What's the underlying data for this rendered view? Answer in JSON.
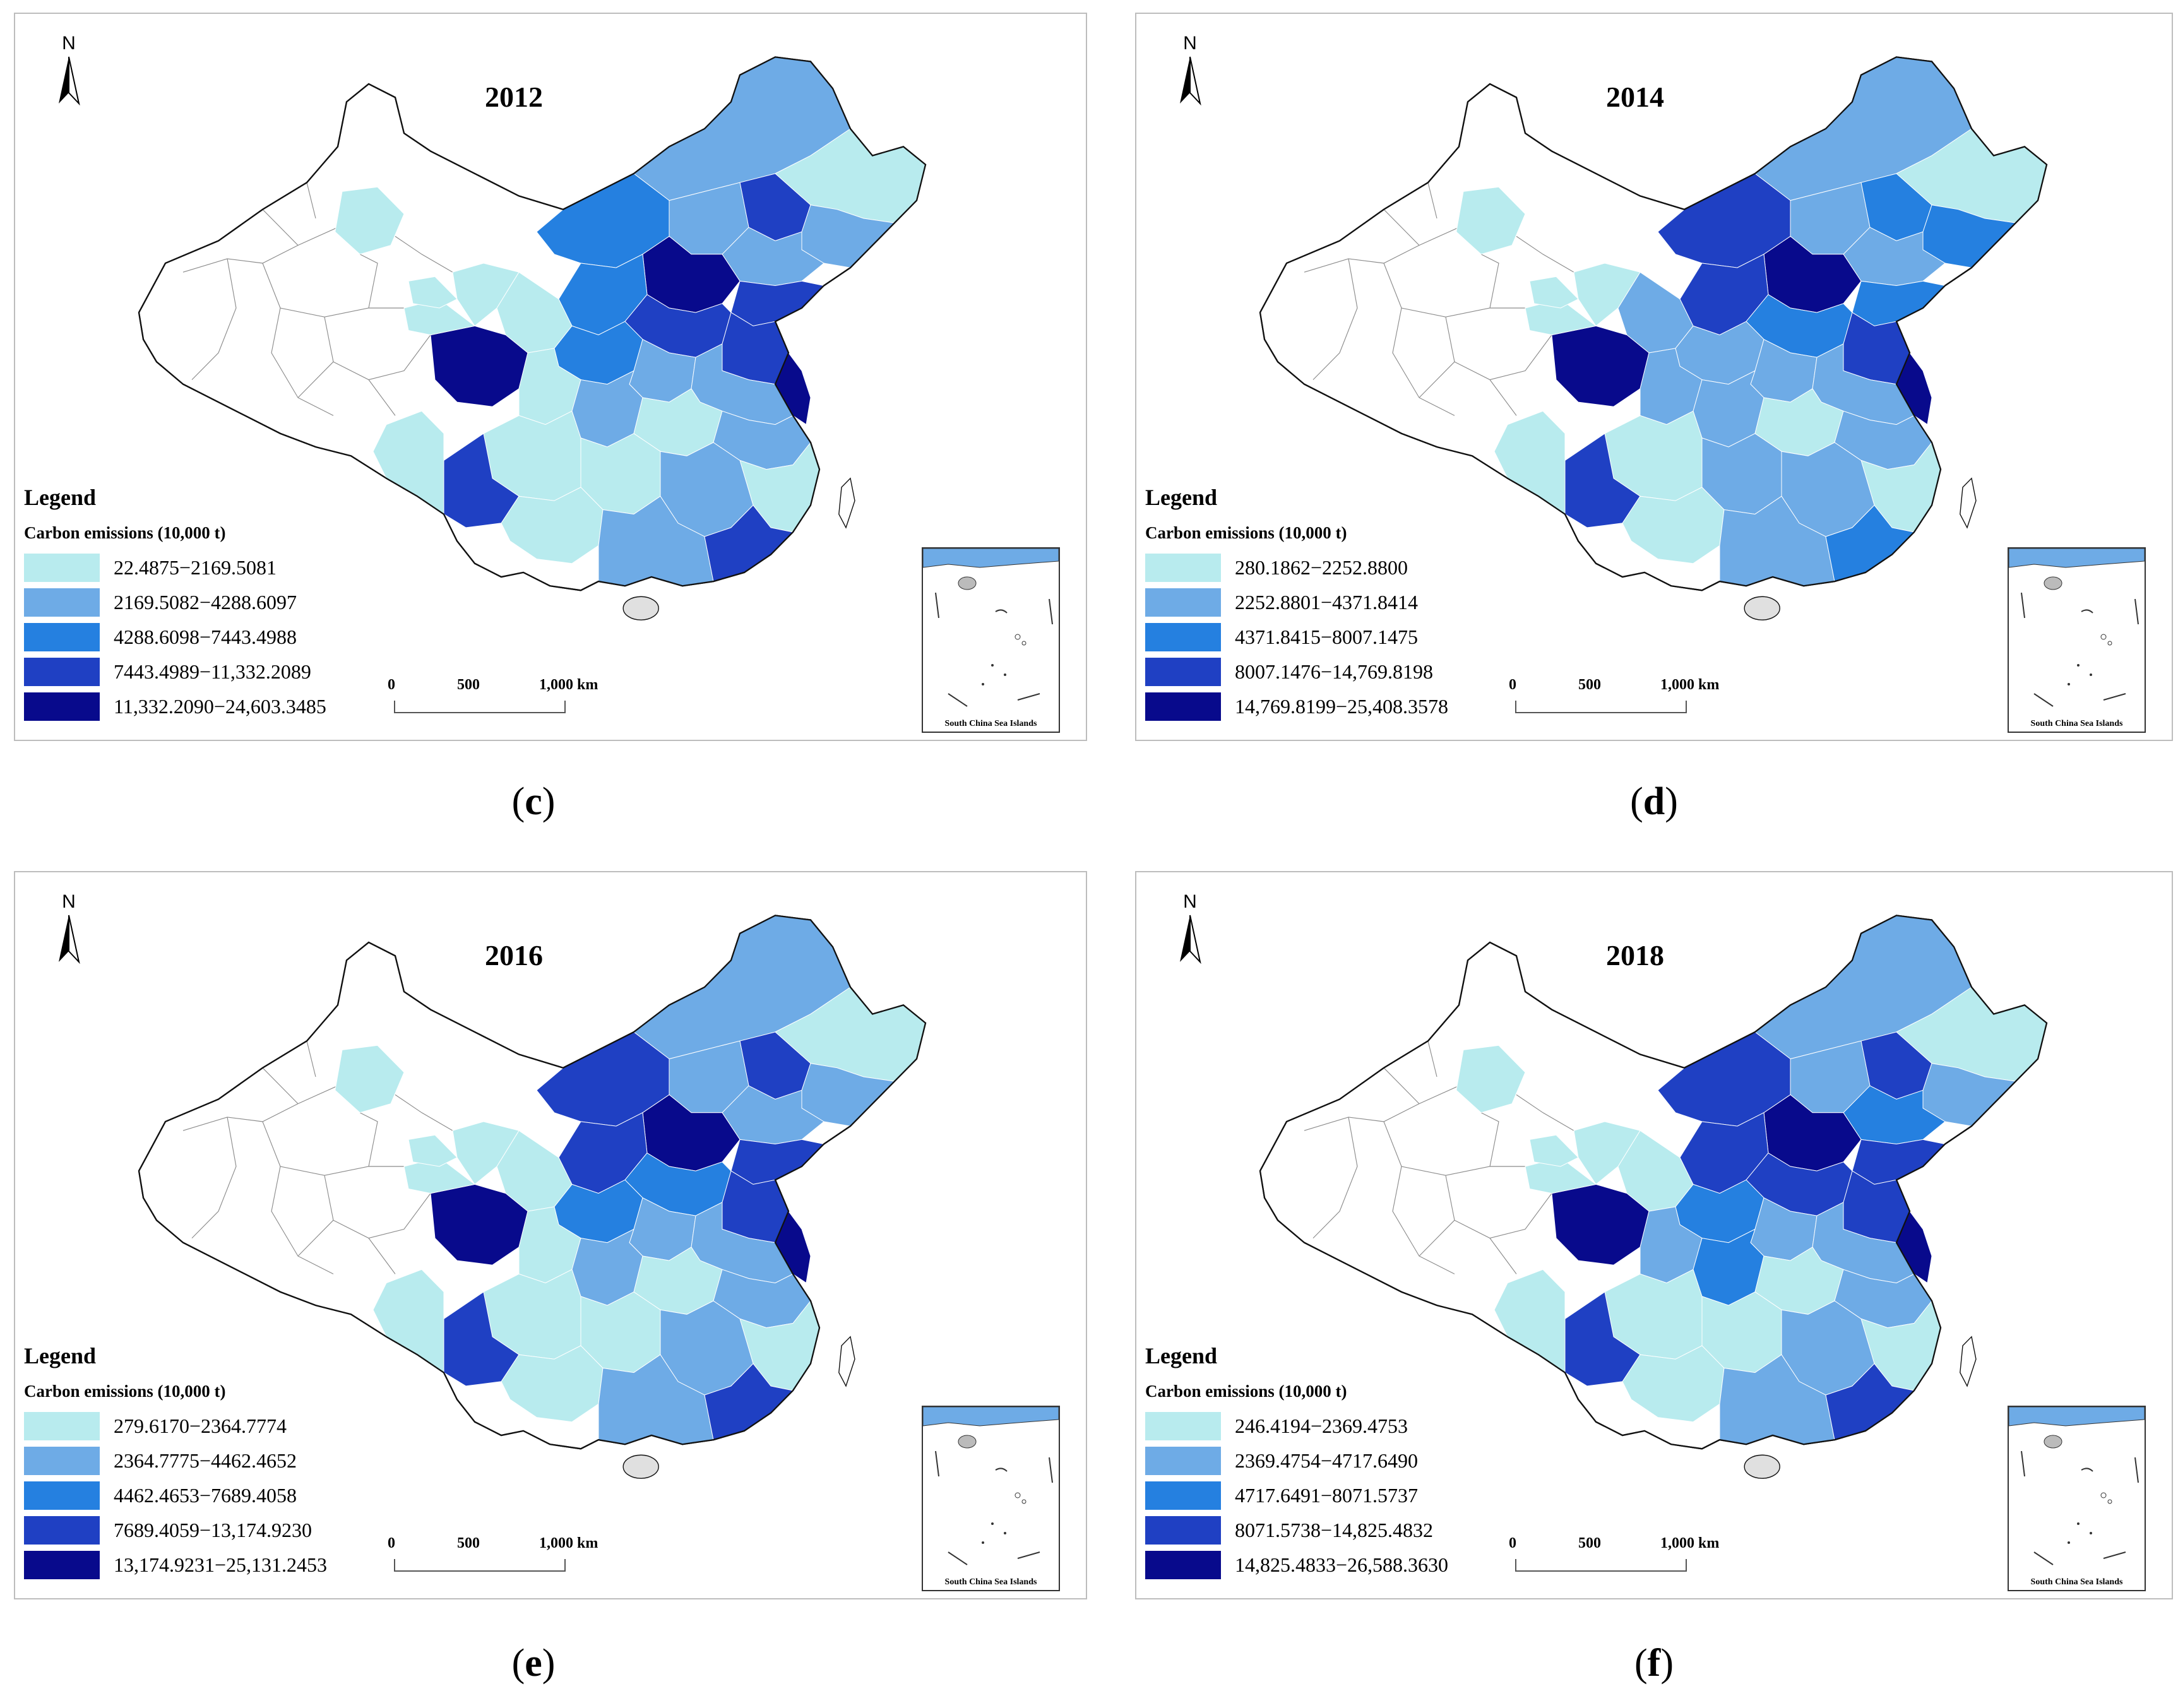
{
  "colors": {
    "class1": "#b8ebee",
    "class2": "#6eabe6",
    "class3": "#2580e0",
    "class4": "#1f40c3",
    "class5": "#080a8c",
    "border": "#8a8a8a",
    "outline": "#111111"
  },
  "panels": [
    {
      "year": "2012",
      "caption_letter": "c",
      "legend_title": "Legend",
      "legend_subtitle": "Carbon emissions (10,000 t)",
      "classes": [
        "22.4875−2169.5081",
        "2169.5082−4288.6097",
        "4288.6098−7443.4988",
        "7443.4989−11,332.2089",
        "11,332.2090−24,603.3485"
      ],
      "north_label": "N",
      "scale_labels": [
        "0",
        "500",
        "1,000 km"
      ],
      "inset_label": "South China Sea Islands"
    },
    {
      "year": "2014",
      "caption_letter": "d",
      "legend_title": "Legend",
      "legend_subtitle": "Carbon emissions (10,000 t)",
      "classes": [
        "280.1862−2252.8800",
        "2252.8801−4371.8414",
        "4371.8415−8007.1475",
        "8007.1476−14,769.8198",
        "14,769.8199−25,408.3578"
      ],
      "north_label": "N",
      "scale_labels": [
        "0",
        "500",
        "1,000 km"
      ],
      "inset_label": "South China Sea Islands"
    },
    {
      "year": "2016",
      "caption_letter": "e",
      "legend_title": "Legend",
      "legend_subtitle": "Carbon emissions (10,000 t)",
      "classes": [
        "279.6170−2364.7774",
        "2364.7775−4462.4652",
        "4462.4653−7689.4058",
        "7689.4059−13,174.9230",
        "13,174.9231−25,131.2453"
      ],
      "north_label": "N",
      "scale_labels": [
        "0",
        "500",
        "1,000 km"
      ],
      "inset_label": "South China Sea Islands"
    },
    {
      "year": "2018",
      "caption_letter": "f",
      "legend_title": "Legend",
      "legend_subtitle": "Carbon emissions (10,000 t)",
      "classes": [
        "246.4194−2369.4753",
        "2369.4754−4717.6490",
        "4717.6491−8071.5737",
        "8071.5738−14,825.4832",
        "14,825.4833−26,588.3630"
      ],
      "north_label": "N",
      "scale_labels": [
        "0",
        "500",
        "1,000 km"
      ],
      "inset_label": "South China Sea Islands"
    }
  ]
}
